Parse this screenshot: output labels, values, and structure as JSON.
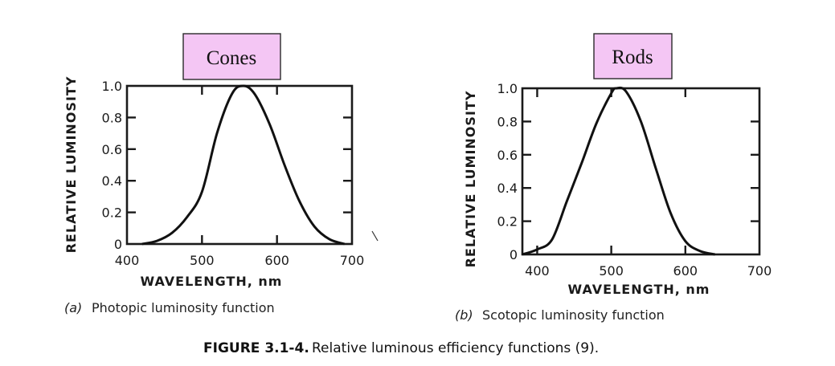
{
  "panels": [
    {
      "badge": "Cones",
      "caption_letter": "(a)",
      "caption_text": "Photopic luminosity function"
    },
    {
      "badge": "Rods",
      "caption_letter": "(b)",
      "caption_text": "Scotopic luminosity function"
    }
  ],
  "figure_caption": {
    "label": "FIGURE 3.1-4.",
    "text": "Relative luminous efficiency functions (9)."
  },
  "colors": {
    "badge_fill": "#f4c6f4",
    "curve": "#111111"
  },
  "chart_data": [
    {
      "type": "line",
      "title": "",
      "xlabel": "WAVELENGTH,  nm",
      "ylabel": "RELATIVE LUMINOSITY",
      "xlim": [
        400,
        700
      ],
      "ylim": [
        0,
        1.0
      ],
      "x_ticks": [
        400,
        500,
        600,
        700
      ],
      "x_tick_labels": [
        "400",
        "500",
        "600",
        "700"
      ],
      "y_ticks": [
        0,
        0.2,
        0.4,
        0.6,
        0.8,
        1.0
      ],
      "y_tick_labels": [
        "0",
        "0.2",
        "0.4",
        "0.6",
        "0.8",
        "1.0"
      ],
      "grid": false,
      "series": [
        {
          "x": [
            420,
            440,
            460,
            480,
            500,
            520,
            540,
            555,
            570,
            590,
            610,
            630,
            650,
            670,
            690
          ],
          "y": [
            0.0,
            0.02,
            0.07,
            0.17,
            0.33,
            0.7,
            0.95,
            1.0,
            0.95,
            0.76,
            0.5,
            0.27,
            0.11,
            0.03,
            0.0
          ]
        }
      ]
    },
    {
      "type": "line",
      "title": "",
      "xlabel": "WAVELENGTH, nm",
      "ylabel": "RELATIVE LUMINOSITY",
      "xlim": [
        380,
        700
      ],
      "ylim": [
        0,
        1.0
      ],
      "x_ticks": [
        400,
        500,
        600,
        700
      ],
      "x_tick_labels": [
        "400",
        "500",
        "600",
        "700"
      ],
      "y_ticks": [
        0,
        0.2,
        0.4,
        0.6,
        0.8,
        1.0
      ],
      "y_tick_labels": [
        "0",
        "0.2",
        "0.4",
        "0.6",
        "0.8",
        "1.0"
      ],
      "grid": false,
      "series": [
        {
          "x": [
            380,
            400,
            420,
            440,
            460,
            480,
            500,
            507,
            520,
            540,
            560,
            580,
            600,
            620,
            640
          ],
          "y": [
            0.0,
            0.03,
            0.09,
            0.32,
            0.55,
            0.79,
            0.97,
            1.0,
            0.98,
            0.8,
            0.52,
            0.25,
            0.08,
            0.02,
            0.0
          ]
        }
      ]
    }
  ]
}
